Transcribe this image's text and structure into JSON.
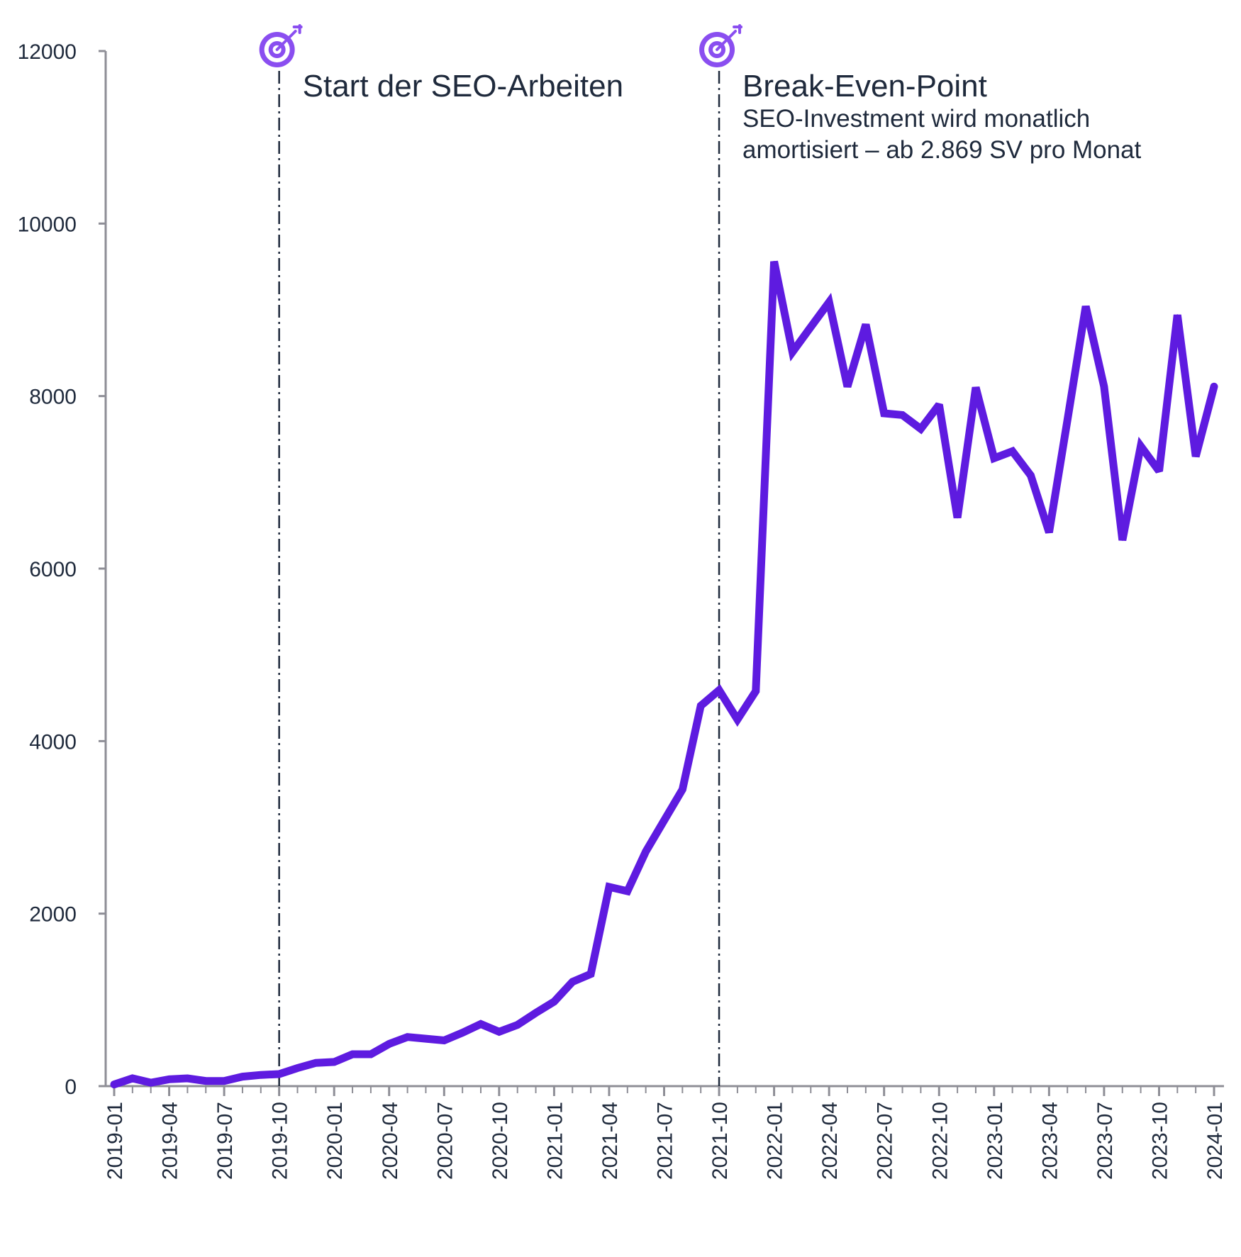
{
  "chart_data": {
    "type": "line",
    "title": "",
    "xlabel": "",
    "ylabel": "",
    "ylim": [
      0,
      12000
    ],
    "yticks": [
      0,
      2000,
      4000,
      6000,
      8000,
      10000,
      12000
    ],
    "ytick_labels": [
      "0",
      "2000",
      "4000",
      "6000",
      "8000",
      "10000",
      "12000"
    ],
    "xticks": [
      "2019-01",
      "2019-04",
      "2019-07",
      "2019-10",
      "2020-01",
      "2020-04",
      "2020-07",
      "2020-10",
      "2021-01",
      "2021-04",
      "2021-07",
      "2021-10",
      "2022-01",
      "2022-04",
      "2022-07",
      "2022-10",
      "2023-01",
      "2023-04",
      "2023-07",
      "2023-10",
      "2024-01"
    ],
    "grid": false,
    "colors": {
      "line": "#5e1be0",
      "axis": "#8e8e96",
      "text": "#1f2a3c",
      "marker_line": "#1f2a3c",
      "icon": "#8a4ef0"
    },
    "series": [
      {
        "x": [
          "2019-01",
          "2019-02",
          "2019-03",
          "2019-04",
          "2019-05",
          "2019-06",
          "2019-07",
          "2019-08",
          "2019-09",
          "2019-10",
          "2019-11",
          "2019-12",
          "2020-01",
          "2020-02",
          "2020-03",
          "2020-04",
          "2020-05",
          "2020-06",
          "2020-07",
          "2020-08",
          "2020-09",
          "2020-10",
          "2020-11",
          "2020-12",
          "2021-01",
          "2021-02",
          "2021-03",
          "2021-04",
          "2021-05",
          "2021-06",
          "2021-07",
          "2021-08",
          "2021-09",
          "2021-10",
          "2021-11",
          "2021-12",
          "2022-01",
          "2022-02",
          "2022-03",
          "2022-04",
          "2022-05",
          "2022-06",
          "2022-07",
          "2022-08",
          "2022-09",
          "2022-10",
          "2022-11",
          "2022-12",
          "2023-01",
          "2023-02",
          "2023-03",
          "2023-04",
          "2023-05",
          "2023-06",
          "2023-07",
          "2023-08",
          "2023-09",
          "2023-10",
          "2023-11",
          "2023-12",
          "2024-01"
        ],
        "values": [
          20,
          90,
          40,
          80,
          90,
          60,
          60,
          110,
          130,
          140,
          210,
          270,
          280,
          370,
          370,
          490,
          570,
          550,
          530,
          620,
          720,
          630,
          710,
          850,
          980,
          1210,
          1300,
          2310,
          2260,
          2720,
          3080,
          3440,
          4410,
          4590,
          4250,
          4580,
          9560,
          8510,
          8800,
          9090,
          8110,
          8830,
          7800,
          7780,
          7620,
          7900,
          6590,
          8100,
          7280,
          7360,
          7080,
          6420,
          7720,
          9040,
          8110,
          6330,
          7420,
          7130,
          8940,
          7300,
          8110
        ]
      }
    ],
    "annotations": [
      {
        "x": "2019-10",
        "title": "Start der SEO-Arbeiten",
        "subtitle_lines": [],
        "icon": "target-arrow-icon"
      },
      {
        "x": "2021-10",
        "title": "Break-Even-Point",
        "subtitle_lines": [
          "SEO-Investment wird monatlich",
          "amortisiert – ab 2.869 SV pro Monat"
        ],
        "icon": "target-arrow-icon"
      }
    ]
  }
}
